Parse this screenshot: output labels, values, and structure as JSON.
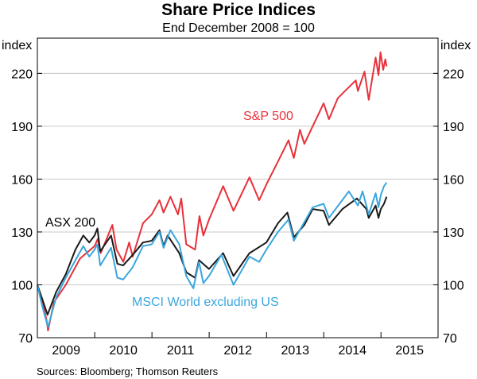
{
  "title": "Share Price Indices",
  "subtitle": "End December 2008 = 100",
  "source": "Sources:  Bloomberg; Thomson Reuters",
  "chart_data": {
    "type": "line",
    "yunit_left": "index",
    "yunit_right": "index",
    "ylim": [
      70,
      240
    ],
    "yticks": [
      70,
      100,
      130,
      160,
      190,
      220
    ],
    "xlim": [
      "2008-12-31",
      "2015-12-31"
    ],
    "xticks": [
      "2009",
      "2010",
      "2011",
      "2012",
      "2013",
      "2014",
      "2015"
    ],
    "grid": true,
    "series": [
      {
        "name": "S&P 500",
        "color": "#e8303a",
        "points": [
          [
            "2008-12-31",
            100
          ],
          [
            "2009-01-31",
            91
          ],
          [
            "2009-02-28",
            80
          ],
          [
            "2009-03-09",
            74
          ],
          [
            "2009-04-15",
            90
          ],
          [
            "2009-06-30",
            100
          ],
          [
            "2009-09-30",
            115
          ],
          [
            "2009-12-31",
            122
          ],
          [
            "2010-01-20",
            126
          ],
          [
            "2010-02-08",
            118
          ],
          [
            "2010-04-23",
            134
          ],
          [
            "2010-05-20",
            120
          ],
          [
            "2010-07-02",
            113
          ],
          [
            "2010-08-09",
            124
          ],
          [
            "2010-08-31",
            116
          ],
          [
            "2010-11-05",
            135
          ],
          [
            "2010-12-31",
            140
          ],
          [
            "2011-02-18",
            148
          ],
          [
            "2011-03-16",
            141
          ],
          [
            "2011-04-29",
            150
          ],
          [
            "2011-06-16",
            140
          ],
          [
            "2011-07-07",
            149
          ],
          [
            "2011-08-08",
            123
          ],
          [
            "2011-10-03",
            120
          ],
          [
            "2011-10-31",
            139
          ],
          [
            "2011-11-25",
            128
          ],
          [
            "2011-12-31",
            137
          ],
          [
            "2012-03-30",
            156
          ],
          [
            "2012-06-04",
            142
          ],
          [
            "2012-09-14",
            161
          ],
          [
            "2012-11-15",
            148
          ],
          [
            "2012-12-31",
            157
          ],
          [
            "2013-03-15",
            170
          ],
          [
            "2013-05-21",
            182
          ],
          [
            "2013-06-24",
            172
          ],
          [
            "2013-08-02",
            188
          ],
          [
            "2013-08-30",
            180
          ],
          [
            "2013-12-31",
            203
          ],
          [
            "2014-02-03",
            194
          ],
          [
            "2014-04-01",
            206
          ],
          [
            "2014-07-24",
            216
          ],
          [
            "2014-08-07",
            210
          ],
          [
            "2014-09-18",
            221
          ],
          [
            "2014-10-15",
            205
          ],
          [
            "2014-11-28",
            229
          ],
          [
            "2014-12-16",
            219
          ],
          [
            "2014-12-29",
            232
          ],
          [
            "2015-01-15",
            222
          ],
          [
            "2015-01-29",
            228
          ],
          [
            "2015-02-06",
            224
          ]
        ]
      },
      {
        "name": "ASX 200",
        "color": "#1a1a1a",
        "points": [
          [
            "2008-12-31",
            100
          ],
          [
            "2009-01-31",
            92
          ],
          [
            "2009-03-06",
            83
          ],
          [
            "2009-04-30",
            96
          ],
          [
            "2009-06-30",
            106
          ],
          [
            "2009-08-31",
            120
          ],
          [
            "2009-10-20",
            128
          ],
          [
            "2009-11-27",
            124
          ],
          [
            "2009-12-31",
            128
          ],
          [
            "2010-01-18",
            132
          ],
          [
            "2010-02-05",
            119
          ],
          [
            "2010-04-15",
            128
          ],
          [
            "2010-05-25",
            112
          ],
          [
            "2010-07-01",
            111
          ],
          [
            "2010-08-31",
            117
          ],
          [
            "2010-11-05",
            124
          ],
          [
            "2010-12-31",
            125
          ],
          [
            "2011-02-18",
            131
          ],
          [
            "2011-03-16",
            122
          ],
          [
            "2011-04-11",
            128
          ],
          [
            "2011-06-24",
            118
          ],
          [
            "2011-08-09",
            107
          ],
          [
            "2011-10-03",
            104
          ],
          [
            "2011-10-28",
            114
          ],
          [
            "2011-12-31",
            109
          ],
          [
            "2012-03-30",
            118
          ],
          [
            "2012-06-04",
            105
          ],
          [
            "2012-09-14",
            118
          ],
          [
            "2012-12-31",
            124
          ],
          [
            "2013-03-15",
            135
          ],
          [
            "2013-05-14",
            141
          ],
          [
            "2013-06-24",
            127
          ],
          [
            "2013-08-30",
            134
          ],
          [
            "2013-10-22",
            143
          ],
          [
            "2013-12-31",
            142
          ],
          [
            "2014-02-03",
            134
          ],
          [
            "2014-04-30",
            143
          ],
          [
            "2014-07-31",
            149
          ],
          [
            "2014-09-30",
            143
          ],
          [
            "2014-10-15",
            138
          ],
          [
            "2014-11-28",
            145
          ],
          [
            "2014-12-16",
            138
          ],
          [
            "2014-12-31",
            143
          ],
          [
            "2015-01-20",
            146
          ],
          [
            "2015-02-06",
            150
          ]
        ]
      },
      {
        "name": "MSCI World excluding US",
        "color": "#3aa6dd",
        "points": [
          [
            "2008-12-31",
            100
          ],
          [
            "2009-01-31",
            88
          ],
          [
            "2009-03-09",
            76
          ],
          [
            "2009-04-30",
            93
          ],
          [
            "2009-06-30",
            104
          ],
          [
            "2009-08-31",
            114
          ],
          [
            "2009-10-20",
            122
          ],
          [
            "2009-11-27",
            116
          ],
          [
            "2009-12-31",
            120
          ],
          [
            "2010-01-18",
            123
          ],
          [
            "2010-02-05",
            111
          ],
          [
            "2010-04-15",
            121
          ],
          [
            "2010-05-25",
            104
          ],
          [
            "2010-07-01",
            103
          ],
          [
            "2010-08-31",
            110
          ],
          [
            "2010-11-05",
            122
          ],
          [
            "2010-12-31",
            123
          ],
          [
            "2011-02-18",
            130
          ],
          [
            "2011-03-16",
            121
          ],
          [
            "2011-04-29",
            131
          ],
          [
            "2011-06-24",
            123
          ],
          [
            "2011-08-08",
            105
          ],
          [
            "2011-09-22",
            98
          ],
          [
            "2011-10-28",
            113
          ],
          [
            "2011-11-25",
            101
          ],
          [
            "2011-12-31",
            105
          ],
          [
            "2012-03-19",
            117
          ],
          [
            "2012-06-04",
            100
          ],
          [
            "2012-09-14",
            116
          ],
          [
            "2012-11-15",
            113
          ],
          [
            "2012-12-31",
            120
          ],
          [
            "2013-03-15",
            130
          ],
          [
            "2013-05-21",
            137
          ],
          [
            "2013-06-24",
            125
          ],
          [
            "2013-10-22",
            144
          ],
          [
            "2013-12-31",
            146
          ],
          [
            "2014-02-03",
            138
          ],
          [
            "2014-06-10",
            153
          ],
          [
            "2014-08-07",
            145
          ],
          [
            "2014-09-05",
            153
          ],
          [
            "2014-10-15",
            140
          ],
          [
            "2014-11-28",
            152
          ],
          [
            "2014-12-16",
            144
          ],
          [
            "2014-12-31",
            151
          ],
          [
            "2015-01-20",
            156
          ],
          [
            "2015-02-06",
            158
          ]
        ]
      }
    ]
  }
}
